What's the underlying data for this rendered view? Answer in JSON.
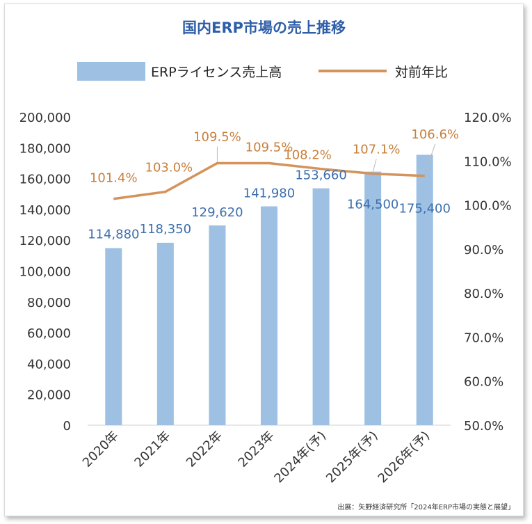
{
  "title": "国内ERP市場の売上推移",
  "legend": {
    "bar_label": "ERPライセンス売上高",
    "line_label": "対前年比"
  },
  "source": "出展：矢野経済研究所「2024年ERP市場の実態と展望」",
  "colors": {
    "bar": "#9dc0e3",
    "line": "#d4935a",
    "bar_label": "#3c6fae",
    "line_label": "#c87f3a",
    "title": "#2e5ea9"
  },
  "chart_data": {
    "type": "bar",
    "title": "国内ERP市場の売上推移",
    "categories": [
      "2020年",
      "2021年",
      "2022年",
      "2023年",
      "2024年(予)",
      "2025年(予)",
      "2026年(予)"
    ],
    "series": [
      {
        "name": "ERPライセンス売上高",
        "type": "bar",
        "axis": "left",
        "values": [
          114880,
          118350,
          129620,
          141980,
          153660,
          164500,
          175400
        ],
        "labels": [
          "114,880",
          "118,350",
          "129,620",
          "141,980",
          "153,660",
          "164,500",
          "175,400"
        ]
      },
      {
        "name": "対前年比",
        "type": "line",
        "axis": "right",
        "values": [
          101.4,
          103.0,
          109.5,
          109.5,
          108.2,
          107.1,
          106.6
        ],
        "labels": [
          "101.4%",
          "103.0%",
          "109.5%",
          "109.5%",
          "108.2%",
          "107.1%",
          "106.6%"
        ]
      }
    ],
    "y_left": {
      "min": 0,
      "max": 200000,
      "step": 20000,
      "ticks": [
        "0",
        "20,000",
        "40,000",
        "60,000",
        "80,000",
        "100,000",
        "120,000",
        "140,000",
        "160,000",
        "180,000",
        "200,000"
      ]
    },
    "y_right": {
      "min": 50,
      "max": 120,
      "step": 10,
      "ticks": [
        "50.0%",
        "60.0%",
        "70.0%",
        "80.0%",
        "90.0%",
        "100.0%",
        "110.0%",
        "120.0%"
      ]
    },
    "legend_position": "top",
    "grid": false
  }
}
